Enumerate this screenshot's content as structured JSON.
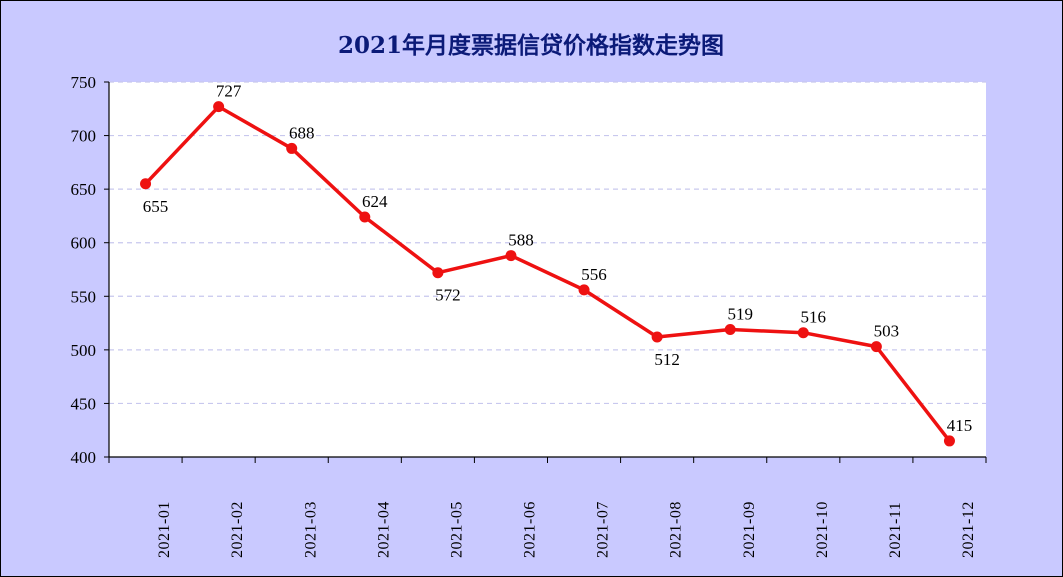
{
  "chart_data": {
    "type": "line",
    "title": "2021年月度票据信贷价格指数走势图",
    "xlabel": "",
    "ylabel": "",
    "categories": [
      "2021-01",
      "2021-02",
      "2021-03",
      "2021-04",
      "2021-05",
      "2021-06",
      "2021-07",
      "2021-08",
      "2021-09",
      "2021-10",
      "2021-11",
      "2021-12"
    ],
    "series": [
      {
        "values": [
          655,
          727,
          688,
          624,
          572,
          588,
          556,
          512,
          519,
          516,
          503,
          415
        ]
      }
    ],
    "label_positions": [
      "below",
      "above",
      "above",
      "above",
      "below",
      "above",
      "above",
      "below",
      "above",
      "above",
      "above",
      "above"
    ],
    "ylim": [
      400,
      750
    ],
    "yticks": [
      400,
      450,
      500,
      550,
      600,
      650,
      700,
      750
    ],
    "grid": "horizontal-dashed",
    "legend": "none",
    "colors": {
      "background": "#c9c9ff",
      "plot_area": "#ffffff",
      "line": "#ee1111",
      "grid": "#c8c8ee",
      "title": "#0b1a78"
    }
  }
}
